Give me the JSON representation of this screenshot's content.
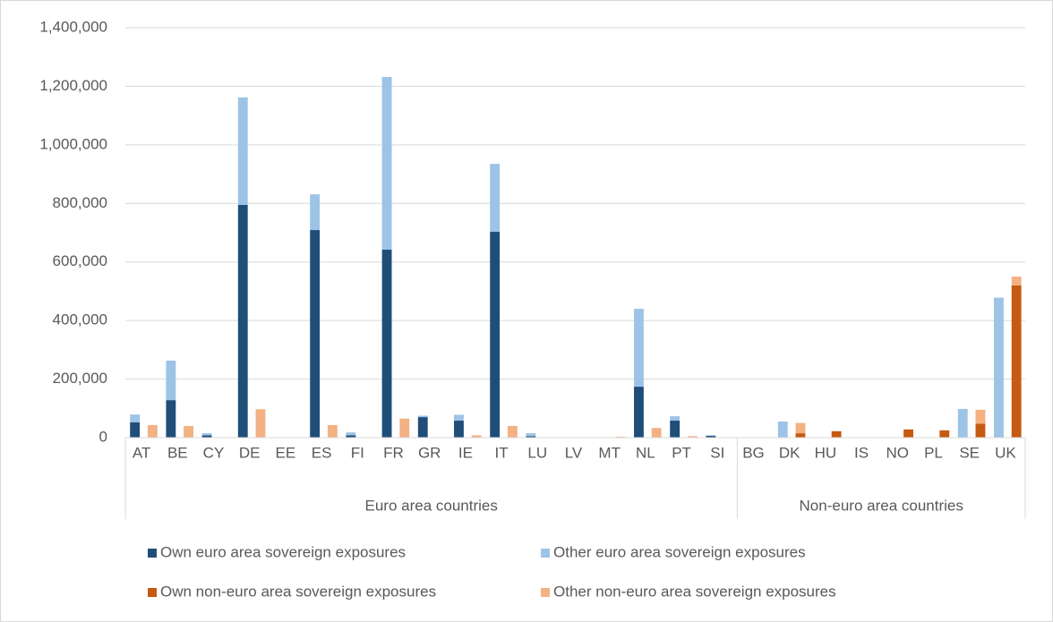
{
  "chart_data": {
    "type": "stacked_bar",
    "categories": [
      "AT",
      "BE",
      "CY",
      "DE",
      "EE",
      "ES",
      "FI",
      "FR",
      "GR",
      "IE",
      "IT",
      "LU",
      "LV",
      "MT",
      "NL",
      "PT",
      "SI",
      "BG",
      "DK",
      "HU",
      "IS",
      "NO",
      "PL",
      "SE",
      "UK"
    ],
    "groups": [
      {
        "label": "Euro area countries",
        "count": 17
      },
      {
        "label": "Non-euro area countries",
        "count": 8
      }
    ],
    "series": [
      {
        "name": "Own euro area sovereign exposures",
        "color": "#1f4e79",
        "stack": 0,
        "values": [
          52000,
          128000,
          8000,
          795000,
          0,
          709000,
          8000,
          642000,
          70000,
          58000,
          703000,
          5000,
          0,
          0,
          174000,
          58000,
          6000,
          0,
          0,
          0,
          0,
          0,
          0,
          0,
          0
        ]
      },
      {
        "name": "Other euro area sovereign exposures",
        "color": "#9dc3e6",
        "stack": 0,
        "values": [
          27000,
          135000,
          7000,
          367000,
          0,
          122000,
          10000,
          590000,
          5000,
          20000,
          232000,
          10000,
          0,
          0,
          266000,
          15000,
          2000,
          0,
          55000,
          0,
          0,
          0,
          0,
          98000,
          478000
        ]
      },
      {
        "name": "Own non-euro area sovereign exposures",
        "color": "#c55a11",
        "stack": 1,
        "values": [
          0,
          0,
          0,
          0,
          0,
          0,
          0,
          0,
          0,
          0,
          0,
          0,
          0,
          0,
          0,
          0,
          0,
          0,
          15000,
          22000,
          0,
          28000,
          25000,
          48000,
          520000
        ]
      },
      {
        "name": "Other non-euro area sovereign exposures",
        "color": "#f4b183",
        "stack": 1,
        "values": [
          43000,
          40000,
          0,
          97000,
          0,
          43000,
          0,
          65000,
          0,
          8000,
          40000,
          0,
          0,
          3000,
          33000,
          5000,
          0,
          0,
          35000,
          0,
          0,
          0,
          0,
          47000,
          30000
        ]
      }
    ],
    "ylim": [
      0,
      1400000
    ],
    "yticks": [
      0,
      {
        "value": 200000,
        "label": "200,000"
      },
      {
        "value": 400000,
        "label": "400,000"
      },
      {
        "value": 600000,
        "label": "600,000"
      },
      {
        "value": 800000,
        "label": "800,000"
      },
      {
        "value": 1000000,
        "label": "1,000,000"
      },
      {
        "value": 1200000,
        "label": "1,200,000"
      },
      {
        "value": 1400000,
        "label": "1,400,000"
      }
    ],
    "grid": true,
    "legend": "bottom"
  }
}
